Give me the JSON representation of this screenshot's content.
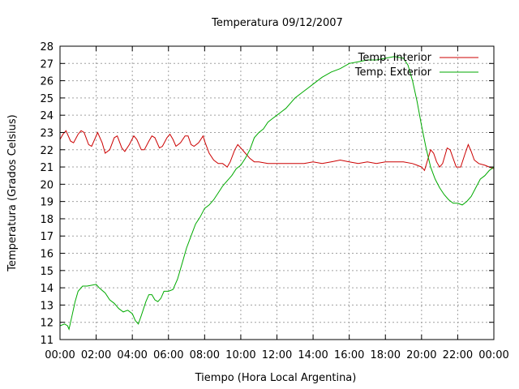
{
  "chart_data": {
    "type": "line",
    "title": "Temperatura 09/12/2007",
    "xlabel": "Tiempo (Hora Local Argentina)",
    "ylabel": "Temperatura (Grados Celsius)",
    "xlim": [
      "00:00",
      "24:00"
    ],
    "ylim": [
      11,
      28
    ],
    "x_ticks": [
      "00:00",
      "02:00",
      "04:00",
      "06:00",
      "08:00",
      "10:00",
      "12:00",
      "14:00",
      "16:00",
      "18:00",
      "20:00",
      "22:00",
      "00:00"
    ],
    "y_ticks": [
      11,
      12,
      13,
      14,
      15,
      16,
      17,
      18,
      19,
      20,
      21,
      22,
      23,
      24,
      25,
      26,
      27,
      28
    ],
    "grid": true,
    "legend_position": "top-right",
    "series": [
      {
        "name": "Temp. Interior",
        "color": "#cc0000",
        "points": [
          [
            "00:00",
            22.6
          ],
          [
            "00:10",
            22.9
          ],
          [
            "00:20",
            23.1
          ],
          [
            "00:35",
            22.5
          ],
          [
            "00:45",
            22.4
          ],
          [
            "01:00",
            22.9
          ],
          [
            "01:10",
            23.1
          ],
          [
            "01:20",
            23.0
          ],
          [
            "01:35",
            22.3
          ],
          [
            "01:45",
            22.2
          ],
          [
            "02:00",
            22.8
          ],
          [
            "02:05",
            23.0
          ],
          [
            "02:20",
            22.4
          ],
          [
            "02:30",
            21.8
          ],
          [
            "02:45",
            22.0
          ],
          [
            "03:00",
            22.7
          ],
          [
            "03:10",
            22.8
          ],
          [
            "03:25",
            22.1
          ],
          [
            "03:35",
            21.9
          ],
          [
            "03:50",
            22.3
          ],
          [
            "04:05",
            22.8
          ],
          [
            "04:15",
            22.6
          ],
          [
            "04:30",
            22.0
          ],
          [
            "04:40",
            22.0
          ],
          [
            "04:55",
            22.5
          ],
          [
            "05:05",
            22.8
          ],
          [
            "05:15",
            22.7
          ],
          [
            "05:30",
            22.1
          ],
          [
            "05:40",
            22.2
          ],
          [
            "05:55",
            22.7
          ],
          [
            "06:05",
            22.9
          ],
          [
            "06:15",
            22.6
          ],
          [
            "06:25",
            22.2
          ],
          [
            "06:40",
            22.4
          ],
          [
            "06:55",
            22.8
          ],
          [
            "07:05",
            22.8
          ],
          [
            "07:15",
            22.3
          ],
          [
            "07:25",
            22.2
          ],
          [
            "07:40",
            22.4
          ],
          [
            "07:55",
            22.8
          ],
          [
            "08:00",
            22.5
          ],
          [
            "08:15",
            21.8
          ],
          [
            "08:30",
            21.4
          ],
          [
            "08:45",
            21.2
          ],
          [
            "09:00",
            21.2
          ],
          [
            "09:15",
            21.0
          ],
          [
            "09:25",
            21.3
          ],
          [
            "09:40",
            22.0
          ],
          [
            "09:50",
            22.3
          ],
          [
            "10:00",
            22.1
          ],
          [
            "10:15",
            21.8
          ],
          [
            "10:30",
            21.5
          ],
          [
            "10:45",
            21.3
          ],
          [
            "11:00",
            21.3
          ],
          [
            "11:30",
            21.2
          ],
          [
            "12:00",
            21.2
          ],
          [
            "12:30",
            21.2
          ],
          [
            "13:00",
            21.2
          ],
          [
            "13:30",
            21.2
          ],
          [
            "14:00",
            21.3
          ],
          [
            "14:30",
            21.2
          ],
          [
            "15:00",
            21.3
          ],
          [
            "15:30",
            21.4
          ],
          [
            "16:00",
            21.3
          ],
          [
            "16:30",
            21.2
          ],
          [
            "17:00",
            21.3
          ],
          [
            "17:30",
            21.2
          ],
          [
            "18:00",
            21.3
          ],
          [
            "18:30",
            21.3
          ],
          [
            "19:00",
            21.3
          ],
          [
            "19:30",
            21.2
          ],
          [
            "19:45",
            21.1
          ],
          [
            "20:00",
            21.0
          ],
          [
            "20:10",
            20.8
          ],
          [
            "20:20",
            21.4
          ],
          [
            "20:30",
            22.0
          ],
          [
            "20:40",
            21.8
          ],
          [
            "20:50",
            21.3
          ],
          [
            "21:00",
            21.0
          ],
          [
            "21:10",
            21.2
          ],
          [
            "21:25",
            22.1
          ],
          [
            "21:35",
            22.0
          ],
          [
            "21:45",
            21.5
          ],
          [
            "21:55",
            21.0
          ],
          [
            "22:10",
            21.0
          ],
          [
            "22:25",
            21.8
          ],
          [
            "22:35",
            22.3
          ],
          [
            "22:45",
            21.9
          ],
          [
            "22:55",
            21.4
          ],
          [
            "23:10",
            21.2
          ],
          [
            "23:30",
            21.1
          ],
          [
            "23:45",
            21.0
          ],
          [
            "24:00",
            20.9
          ]
        ]
      },
      {
        "name": "Temp. Exterior",
        "color": "#00aa00",
        "points": [
          [
            "00:00",
            11.8
          ],
          [
            "00:15",
            11.9
          ],
          [
            "00:25",
            11.8
          ],
          [
            "00:30",
            11.6
          ],
          [
            "00:40",
            12.4
          ],
          [
            "00:50",
            13.2
          ],
          [
            "01:00",
            13.8
          ],
          [
            "01:15",
            14.1
          ],
          [
            "01:30",
            14.1
          ],
          [
            "02:00",
            14.2
          ],
          [
            "02:10",
            14.0
          ],
          [
            "02:30",
            13.7
          ],
          [
            "02:45",
            13.3
          ],
          [
            "03:00",
            13.1
          ],
          [
            "03:15",
            12.8
          ],
          [
            "03:30",
            12.6
          ],
          [
            "03:45",
            12.7
          ],
          [
            "04:00",
            12.5
          ],
          [
            "04:10",
            12.1
          ],
          [
            "04:20",
            11.9
          ],
          [
            "04:30",
            12.4
          ],
          [
            "04:45",
            13.2
          ],
          [
            "04:55",
            13.6
          ],
          [
            "05:05",
            13.6
          ],
          [
            "05:15",
            13.3
          ],
          [
            "05:25",
            13.2
          ],
          [
            "05:35",
            13.4
          ],
          [
            "05:45",
            13.8
          ],
          [
            "06:00",
            13.8
          ],
          [
            "06:15",
            13.9
          ],
          [
            "06:30",
            14.5
          ],
          [
            "06:45",
            15.4
          ],
          [
            "07:00",
            16.3
          ],
          [
            "07:15",
            17.0
          ],
          [
            "07:30",
            17.7
          ],
          [
            "07:45",
            18.1
          ],
          [
            "08:00",
            18.6
          ],
          [
            "08:15",
            18.8
          ],
          [
            "08:30",
            19.1
          ],
          [
            "08:45",
            19.5
          ],
          [
            "09:00",
            19.9
          ],
          [
            "09:15",
            20.2
          ],
          [
            "09:30",
            20.5
          ],
          [
            "09:45",
            20.9
          ],
          [
            "10:00",
            21.1
          ],
          [
            "10:15",
            21.5
          ],
          [
            "10:30",
            22.0
          ],
          [
            "10:45",
            22.7
          ],
          [
            "11:00",
            23.0
          ],
          [
            "11:15",
            23.2
          ],
          [
            "11:30",
            23.6
          ],
          [
            "11:45",
            23.8
          ],
          [
            "12:00",
            24.0
          ],
          [
            "12:15",
            24.2
          ],
          [
            "12:30",
            24.4
          ],
          [
            "12:45",
            24.7
          ],
          [
            "13:00",
            25.0
          ],
          [
            "13:30",
            25.4
          ],
          [
            "14:00",
            25.8
          ],
          [
            "14:30",
            26.2
          ],
          [
            "15:00",
            26.5
          ],
          [
            "15:30",
            26.7
          ],
          [
            "16:00",
            27.0
          ],
          [
            "16:30",
            27.1
          ],
          [
            "17:00",
            27.2
          ],
          [
            "17:30",
            27.2
          ],
          [
            "18:00",
            27.3
          ],
          [
            "18:30",
            27.4
          ],
          [
            "19:00",
            27.3
          ],
          [
            "19:15",
            26.9
          ],
          [
            "19:30",
            26.0
          ],
          [
            "19:45",
            24.8
          ],
          [
            "20:00",
            23.4
          ],
          [
            "20:15",
            22.1
          ],
          [
            "20:30",
            21.0
          ],
          [
            "20:45",
            20.3
          ],
          [
            "21:00",
            19.8
          ],
          [
            "21:15",
            19.4
          ],
          [
            "21:30",
            19.1
          ],
          [
            "21:45",
            18.9
          ],
          [
            "22:00",
            18.9
          ],
          [
            "22:15",
            18.8
          ],
          [
            "22:30",
            19.0
          ],
          [
            "22:45",
            19.3
          ],
          [
            "23:00",
            19.8
          ],
          [
            "23:15",
            20.3
          ],
          [
            "23:30",
            20.5
          ],
          [
            "23:45",
            20.8
          ],
          [
            "24:00",
            21.0
          ]
        ]
      }
    ]
  }
}
